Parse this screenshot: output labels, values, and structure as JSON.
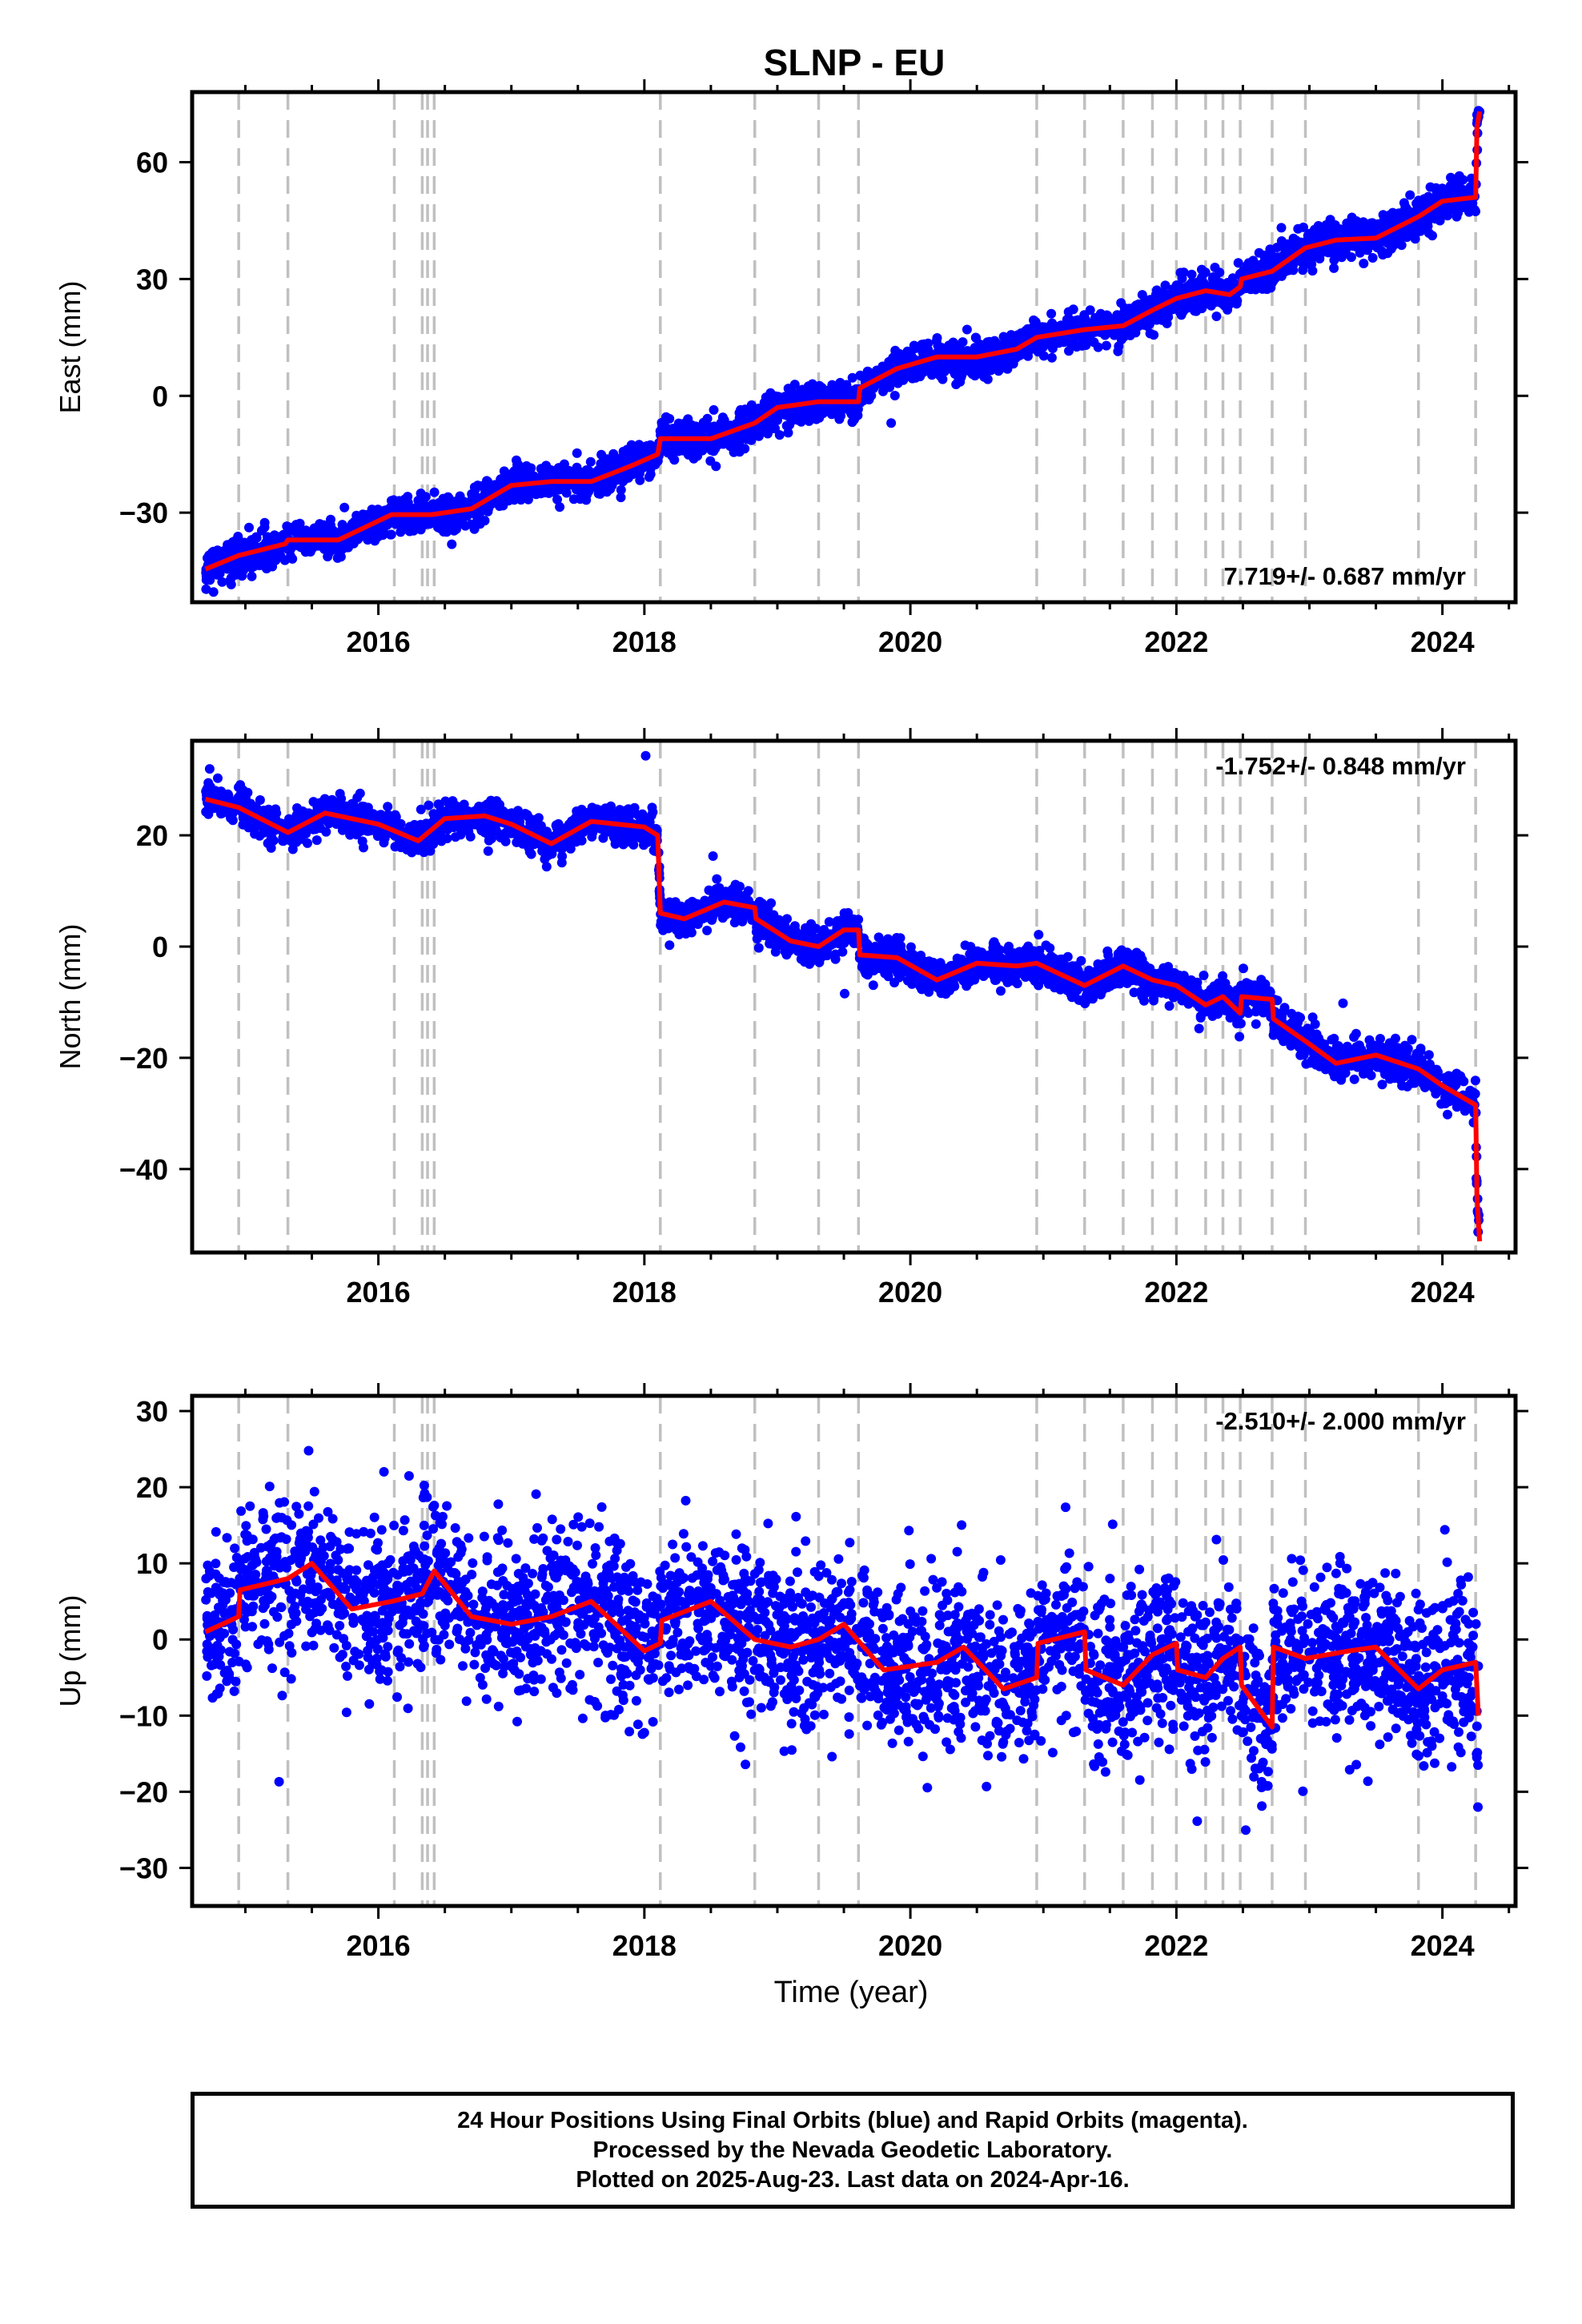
{
  "figure": {
    "title": "SLNP - EU",
    "xlabel": "Time (year)",
    "footer": [
      "24 Hour Positions Using Final Orbits (blue) and Rapid Orbits (magenta).",
      "Processed by the Nevada Geodetic Laboratory.",
      "Plotted on 2025-Aug-23. Last data on 2024-Apr-16."
    ],
    "colors": {
      "observations": "#0000ff",
      "model": "#ff0000",
      "event_lines": "#c0c0c0",
      "axes": "#000000"
    }
  },
  "chart_data": [
    {
      "type": "scatter",
      "ylabel": "East (mm)",
      "xlim": [
        2014.6,
        2024.55
      ],
      "ylim": [
        -53,
        78
      ],
      "xticks": [
        "2016",
        "2018",
        "2020",
        "2022",
        "2024"
      ],
      "yticks": [
        "60",
        "30",
        "0",
        "−30"
      ],
      "rate_label": "7.719+/- 0.687 mm/yr",
      "rate_position": "bottom-right",
      "event_lines": [
        2014.95,
        2015.32,
        2016.12,
        2016.33,
        2016.37,
        2016.42,
        2018.12,
        2018.83,
        2019.31,
        2019.61,
        2020.95,
        2021.31,
        2021.6,
        2021.82,
        2022.0,
        2022.22,
        2022.35,
        2022.48,
        2022.72,
        2022.97,
        2023.82,
        2024.25
      ],
      "model": [
        [
          2014.7,
          -44.5
        ],
        [
          2014.95,
          -41
        ],
        [
          2015.3,
          -38
        ],
        [
          2015.32,
          -37
        ],
        [
          2015.7,
          -37
        ],
        [
          2016.1,
          -30.5
        ],
        [
          2016.4,
          -30.5
        ],
        [
          2016.7,
          -29
        ],
        [
          2017.0,
          -23
        ],
        [
          2017.3,
          -22
        ],
        [
          2017.6,
          -22
        ],
        [
          2017.9,
          -18
        ],
        [
          2018.1,
          -15
        ],
        [
          2018.12,
          -11
        ],
        [
          2018.5,
          -11
        ],
        [
          2018.83,
          -7
        ],
        [
          2019.0,
          -3
        ],
        [
          2019.31,
          -1.5
        ],
        [
          2019.61,
          -1.5
        ],
        [
          2019.62,
          2
        ],
        [
          2019.9,
          7
        ],
        [
          2020.2,
          10
        ],
        [
          2020.5,
          10
        ],
        [
          2020.8,
          12
        ],
        [
          2020.95,
          15
        ],
        [
          2021.31,
          17
        ],
        [
          2021.6,
          18
        ],
        [
          2021.82,
          22
        ],
        [
          2022.0,
          25
        ],
        [
          2022.22,
          27
        ],
        [
          2022.4,
          26
        ],
        [
          2022.48,
          28
        ],
        [
          2022.49,
          30
        ],
        [
          2022.72,
          32
        ],
        [
          2022.97,
          38
        ],
        [
          2023.2,
          40
        ],
        [
          2023.5,
          40.5
        ],
        [
          2023.82,
          46
        ],
        [
          2024.0,
          50
        ],
        [
          2024.25,
          51
        ],
        [
          2024.26,
          69
        ],
        [
          2024.28,
          73
        ]
      ],
      "noise": 2.3,
      "y_reading": "east"
    },
    {
      "type": "scatter",
      "ylabel": "North (mm)",
      "xlim": [
        2014.6,
        2024.55
      ],
      "ylim": [
        -55,
        37
      ],
      "xticks": [
        "2016",
        "2018",
        "2020",
        "2022",
        "2024"
      ],
      "yticks": [
        "20",
        "0",
        "−20",
        "−40"
      ],
      "rate_label": "-1.752+/- 0.848 mm/yr",
      "rate_position": "top-right",
      "event_lines": [
        2014.95,
        2015.32,
        2016.12,
        2016.33,
        2016.37,
        2016.42,
        2018.12,
        2018.83,
        2019.31,
        2019.61,
        2020.95,
        2021.31,
        2021.6,
        2021.82,
        2022.0,
        2022.22,
        2022.35,
        2022.48,
        2022.72,
        2022.97,
        2023.82,
        2024.25
      ],
      "model": [
        [
          2014.7,
          26.5
        ],
        [
          2014.95,
          25
        ],
        [
          2015.32,
          20.5
        ],
        [
          2015.6,
          24
        ],
        [
          2016.0,
          22
        ],
        [
          2016.3,
          19
        ],
        [
          2016.5,
          23
        ],
        [
          2016.8,
          23.5
        ],
        [
          2017.0,
          22
        ],
        [
          2017.3,
          18.5
        ],
        [
          2017.6,
          22.5
        ],
        [
          2018.0,
          21.5
        ],
        [
          2018.1,
          20
        ],
        [
          2018.12,
          6
        ],
        [
          2018.3,
          5
        ],
        [
          2018.6,
          8
        ],
        [
          2018.83,
          7
        ],
        [
          2018.84,
          5
        ],
        [
          2019.1,
          1
        ],
        [
          2019.31,
          0
        ],
        [
          2019.5,
          3
        ],
        [
          2019.61,
          3
        ],
        [
          2019.62,
          -1.5
        ],
        [
          2019.9,
          -2
        ],
        [
          2020.2,
          -6
        ],
        [
          2020.5,
          -3
        ],
        [
          2020.8,
          -3.5
        ],
        [
          2020.95,
          -3
        ],
        [
          2021.31,
          -7
        ],
        [
          2021.6,
          -3.5
        ],
        [
          2021.82,
          -6
        ],
        [
          2022.0,
          -7
        ],
        [
          2022.22,
          -10.5
        ],
        [
          2022.35,
          -9
        ],
        [
          2022.48,
          -12
        ],
        [
          2022.49,
          -9
        ],
        [
          2022.72,
          -9.5
        ],
        [
          2022.73,
          -13
        ],
        [
          2022.97,
          -17
        ],
        [
          2023.2,
          -21
        ],
        [
          2023.5,
          -19.5
        ],
        [
          2023.82,
          -22
        ],
        [
          2024.0,
          -25
        ],
        [
          2024.25,
          -28.5
        ],
        [
          2024.26,
          -45
        ],
        [
          2024.28,
          -53
        ]
      ],
      "noise": 1.6,
      "y_reading": "north"
    },
    {
      "type": "scatter",
      "ylabel": "Up (mm)",
      "xlim": [
        2014.6,
        2024.55
      ],
      "ylim": [
        -35,
        32
      ],
      "xticks": [
        "2016",
        "2018",
        "2020",
        "2022",
        "2024"
      ],
      "yticks": [
        "30",
        "20",
        "10",
        "0",
        "−10",
        "−20",
        "−30"
      ],
      "rate_label": "-2.510+/- 2.000 mm/yr",
      "rate_position": "top-right",
      "event_lines": [
        2014.95,
        2015.32,
        2016.12,
        2016.33,
        2016.37,
        2016.42,
        2018.12,
        2018.83,
        2019.31,
        2019.61,
        2020.95,
        2021.31,
        2021.6,
        2021.82,
        2022.0,
        2022.22,
        2022.35,
        2022.48,
        2022.72,
        2022.97,
        2023.82,
        2024.25
      ],
      "model": [
        [
          2014.7,
          1
        ],
        [
          2014.95,
          3
        ],
        [
          2014.96,
          6.5
        ],
        [
          2015.32,
          8
        ],
        [
          2015.5,
          10
        ],
        [
          2015.8,
          4
        ],
        [
          2016.1,
          5
        ],
        [
          2016.33,
          6
        ],
        [
          2016.42,
          9
        ],
        [
          2016.7,
          3
        ],
        [
          2017.0,
          2
        ],
        [
          2017.3,
          3
        ],
        [
          2017.6,
          5
        ],
        [
          2018.0,
          -1.5
        ],
        [
          2018.12,
          -0.5
        ],
        [
          2018.13,
          2.5
        ],
        [
          2018.5,
          5
        ],
        [
          2018.83,
          0
        ],
        [
          2019.1,
          -1
        ],
        [
          2019.31,
          0
        ],
        [
          2019.5,
          2
        ],
        [
          2019.8,
          -4
        ],
        [
          2020.2,
          -3
        ],
        [
          2020.4,
          -1
        ],
        [
          2020.7,
          -6.5
        ],
        [
          2020.95,
          -5
        ],
        [
          2020.96,
          -0.5
        ],
        [
          2021.31,
          1
        ],
        [
          2021.32,
          -4
        ],
        [
          2021.6,
          -6
        ],
        [
          2021.82,
          -2
        ],
        [
          2022.0,
          -0.5
        ],
        [
          2022.01,
          -4
        ],
        [
          2022.22,
          -5
        ],
        [
          2022.35,
          -2.5
        ],
        [
          2022.48,
          -1
        ],
        [
          2022.49,
          -6
        ],
        [
          2022.72,
          -11.5
        ],
        [
          2022.73,
          -1
        ],
        [
          2022.97,
          -2.5
        ],
        [
          2023.3,
          -1.5
        ],
        [
          2023.5,
          -1
        ],
        [
          2023.82,
          -6.5
        ],
        [
          2024.0,
          -4
        ],
        [
          2024.25,
          -3
        ],
        [
          2024.27,
          -10
        ]
      ],
      "noise": 5.2,
      "y_reading": "up"
    }
  ]
}
